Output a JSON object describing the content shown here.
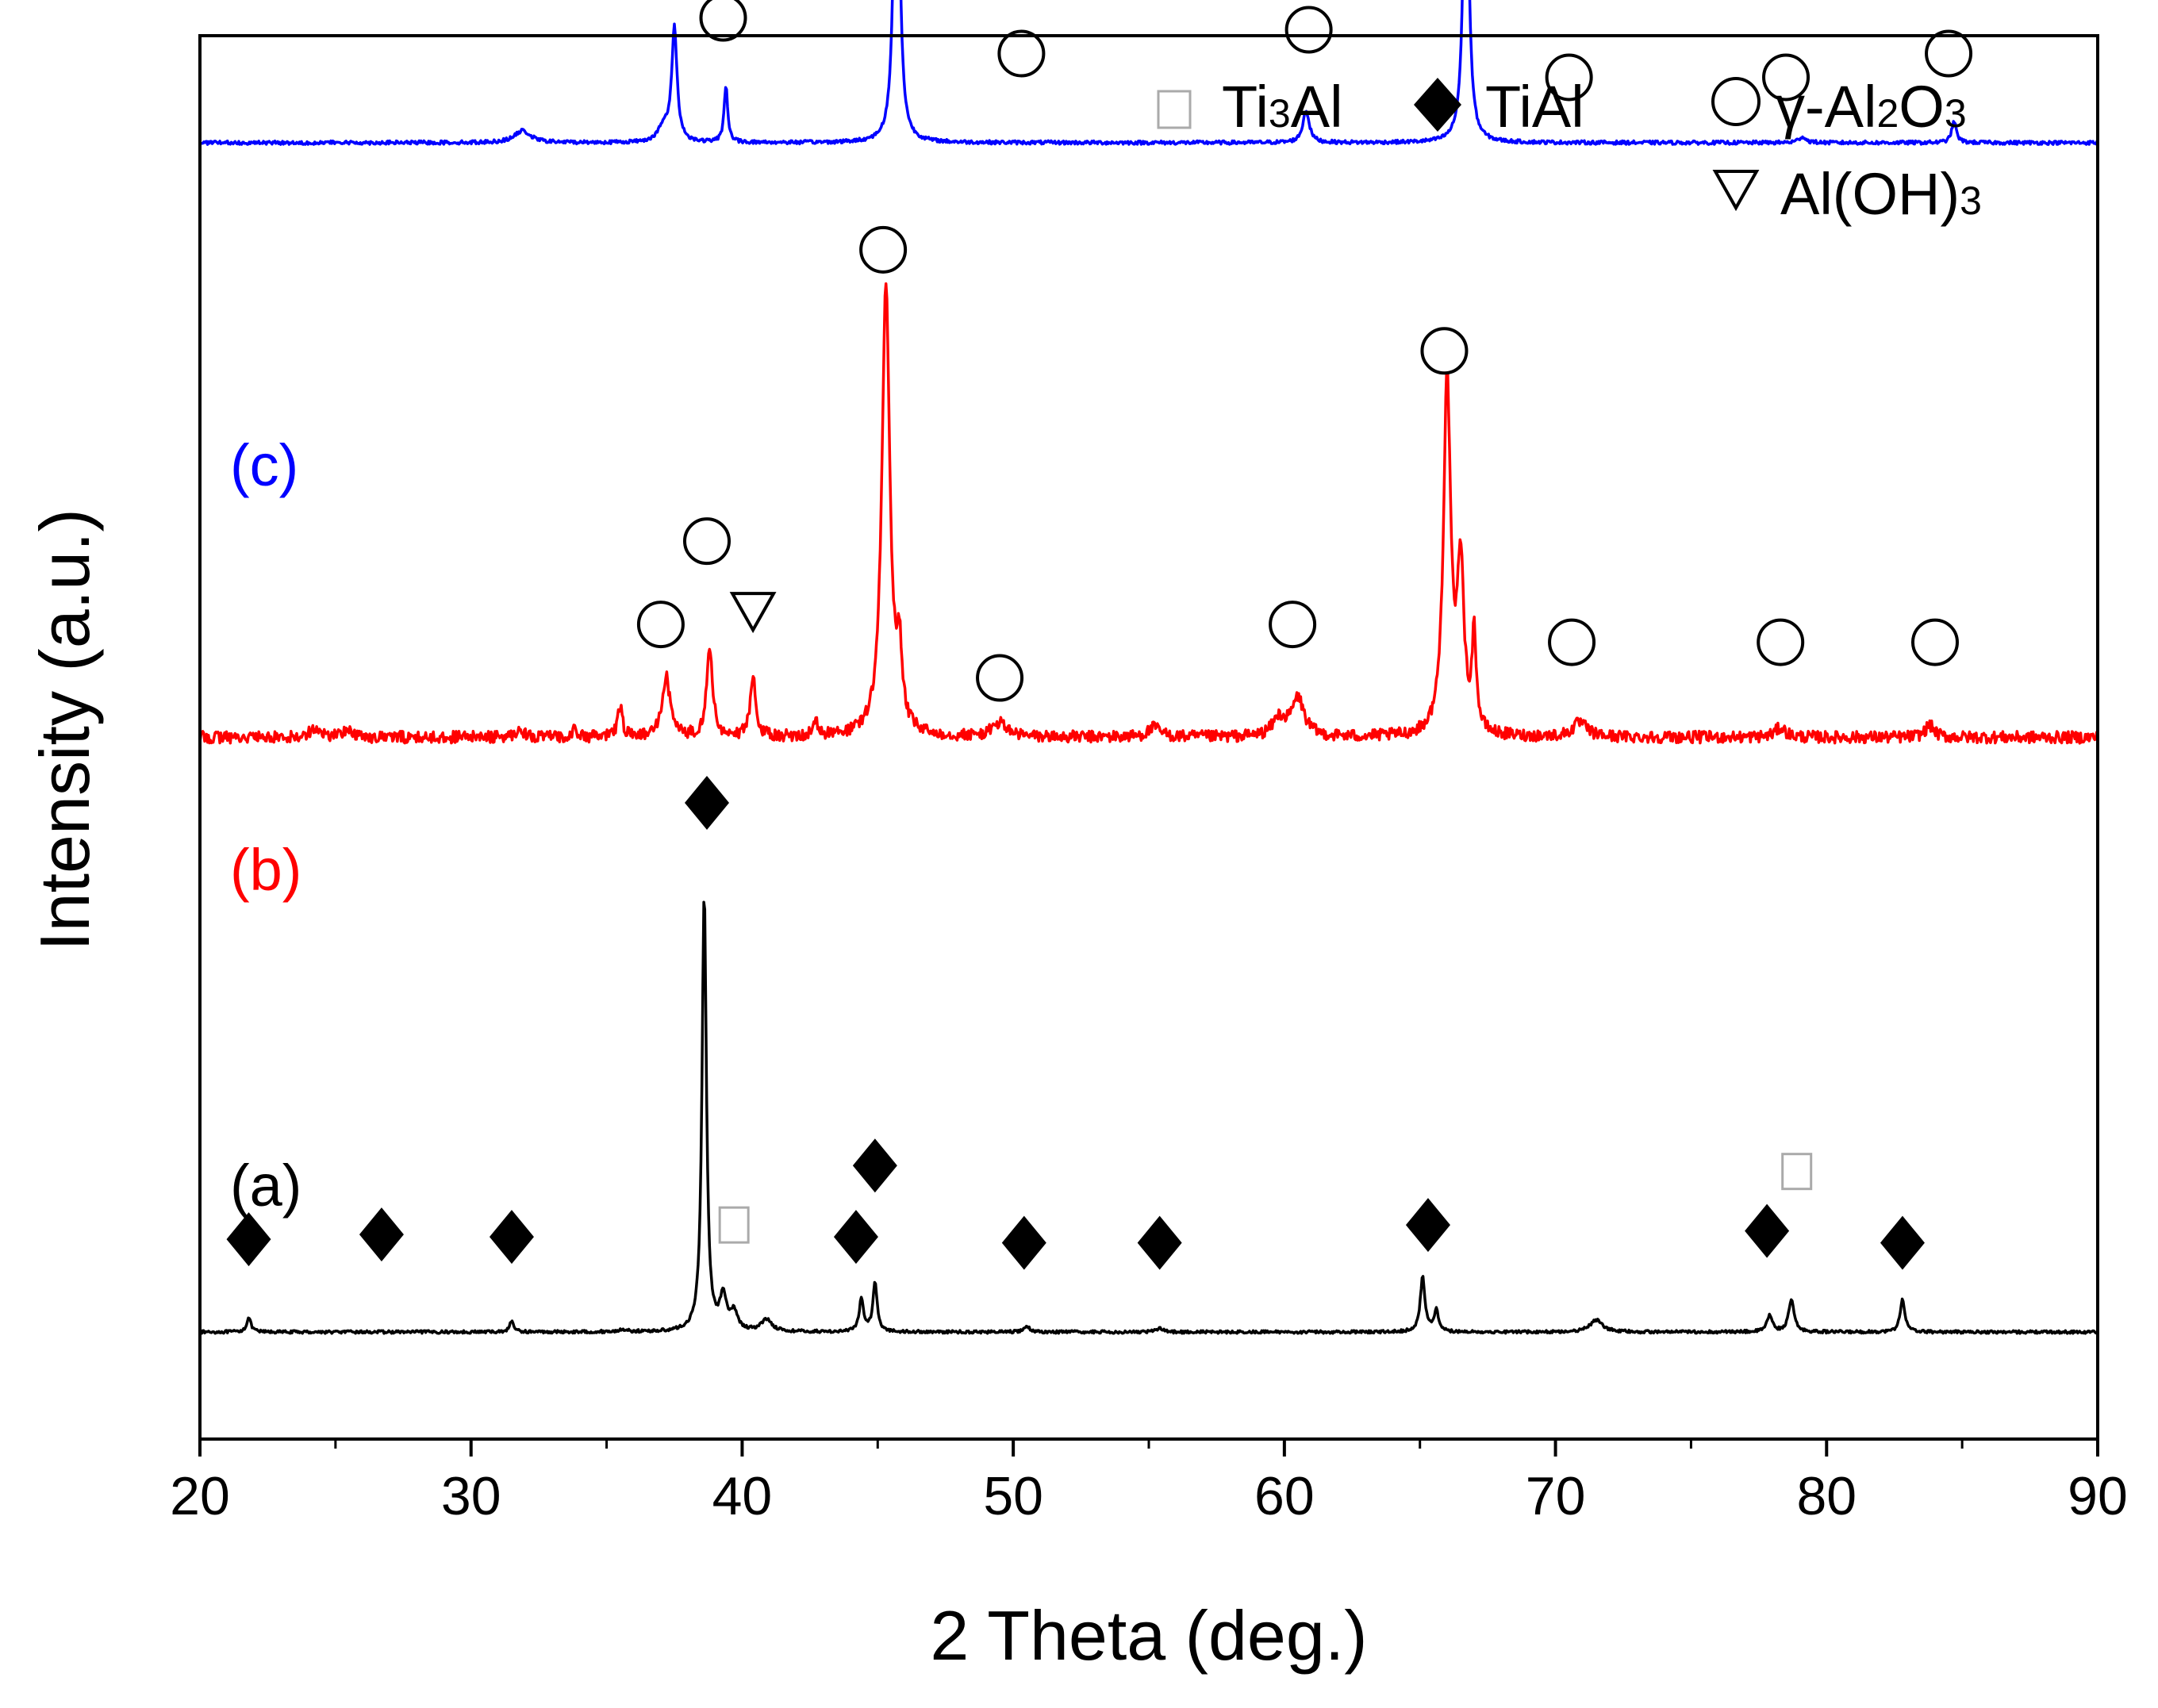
{
  "chart_data": {
    "type": "line",
    "title": "",
    "xlabel": "2 Theta (deg.)",
    "ylabel": "Intensity (a.u.)",
    "xlim": [
      20,
      90
    ],
    "ylim": [
      -0.9,
      10.9
    ],
    "grid": false,
    "x_ticks": [
      20,
      30,
      40,
      50,
      60,
      70,
      80,
      90
    ],
    "x_tick_labels": [
      "20",
      "30",
      "40",
      "50",
      "60",
      "70",
      "80",
      "90"
    ],
    "legend": {
      "placement": "top-right",
      "items": [
        {
          "marker": "square",
          "text": "Ti3Al",
          "color": "#9a9a9a"
        },
        {
          "marker": "diamond",
          "text": "TiAl",
          "color": "#000000"
        },
        {
          "marker": "circle",
          "text": "γ-Al2O3",
          "color": "#000000"
        },
        {
          "marker": "triangle-down",
          "text": "Al(OH)3",
          "color": "#000000"
        }
      ]
    },
    "series": [
      {
        "name": "(a)",
        "color": "#000000",
        "baseline": 0,
        "noise": 0.012,
        "peaks": [
          {
            "x": 21.8,
            "h": 0.12,
            "w": 0.12
          },
          {
            "x": 31.5,
            "h": 0.09,
            "w": 0.12
          },
          {
            "x": 35.6,
            "h": 0.02,
            "w": 0.2
          },
          {
            "x": 38.6,
            "h": 3.7,
            "w": 0.12
          },
          {
            "x": 39.3,
            "h": 0.28,
            "w": 0.18
          },
          {
            "x": 39.7,
            "h": 0.15,
            "w": 0.2
          },
          {
            "x": 40.9,
            "h": 0.1,
            "w": 0.3
          },
          {
            "x": 44.4,
            "h": 0.28,
            "w": 0.12
          },
          {
            "x": 44.9,
            "h": 0.42,
            "w": 0.12
          },
          {
            "x": 50.5,
            "h": 0.05,
            "w": 0.15
          },
          {
            "x": 55.4,
            "h": 0.04,
            "w": 0.15
          },
          {
            "x": 65.1,
            "h": 0.47,
            "w": 0.13
          },
          {
            "x": 65.6,
            "h": 0.18,
            "w": 0.12
          },
          {
            "x": 71.5,
            "h": 0.1,
            "w": 0.35
          },
          {
            "x": 77.9,
            "h": 0.14,
            "w": 0.15
          },
          {
            "x": 78.7,
            "h": 0.27,
            "w": 0.15
          },
          {
            "x": 82.8,
            "h": 0.28,
            "w": 0.13
          }
        ]
      },
      {
        "name": "(b)",
        "color": "#ff0000",
        "baseline": 5,
        "noise": 0.05,
        "peaks": [
          {
            "x": 24.2,
            "h": 0.07,
            "w": 0.3
          },
          {
            "x": 25.4,
            "h": 0.06,
            "w": 0.3
          },
          {
            "x": 31.8,
            "h": 0.08,
            "w": 0.2
          },
          {
            "x": 33.8,
            "h": 0.06,
            "w": 0.15
          },
          {
            "x": 35.5,
            "h": 0.26,
            "w": 0.13
          },
          {
            "x": 37.2,
            "h": 0.5,
            "w": 0.22
          },
          {
            "x": 38.8,
            "h": 0.72,
            "w": 0.17
          },
          {
            "x": 40.4,
            "h": 0.5,
            "w": 0.15
          },
          {
            "x": 42.7,
            "h": 0.12,
            "w": 0.15
          },
          {
            "x": 45.3,
            "h": 3.8,
            "w": 0.22
          },
          {
            "x": 45.8,
            "h": 0.6,
            "w": 0.15
          },
          {
            "x": 49.5,
            "h": 0.12,
            "w": 0.4
          },
          {
            "x": 55.2,
            "h": 0.08,
            "w": 0.35
          },
          {
            "x": 59.8,
            "h": 0.15,
            "w": 0.35
          },
          {
            "x": 60.5,
            "h": 0.32,
            "w": 0.35
          },
          {
            "x": 66.0,
            "h": 3.0,
            "w": 0.2
          },
          {
            "x": 66.5,
            "h": 1.4,
            "w": 0.18
          },
          {
            "x": 67.0,
            "h": 0.8,
            "w": 0.12
          },
          {
            "x": 70.9,
            "h": 0.12,
            "w": 0.4
          },
          {
            "x": 78.3,
            "h": 0.08,
            "w": 0.3
          },
          {
            "x": 83.8,
            "h": 0.1,
            "w": 0.25
          }
        ]
      },
      {
        "name": "(c)",
        "color": "#0000ff",
        "baseline": 10,
        "noise": 0.015,
        "peaks": [
          {
            "x": 31.9,
            "h": 0.1,
            "w": 0.45
          },
          {
            "x": 37.5,
            "h": 0.95,
            "w": 0.15
          },
          {
            "x": 37.1,
            "h": 0.12,
            "w": 0.3
          },
          {
            "x": 39.4,
            "h": 0.48,
            "w": 0.1
          },
          {
            "x": 45.7,
            "h": 3.7,
            "w": 0.14
          },
          {
            "x": 60.8,
            "h": 0.27,
            "w": 0.18
          },
          {
            "x": 66.7,
            "h": 2.85,
            "w": 0.15
          },
          {
            "x": 79.1,
            "h": 0.05,
            "w": 0.2
          },
          {
            "x": 84.7,
            "h": 0.18,
            "w": 0.13
          }
        ]
      }
    ],
    "annotations": [
      {
        "series": "(a)",
        "marker": "diamond",
        "x": 21.8,
        "y": 0.78
      },
      {
        "series": "(a)",
        "marker": "diamond",
        "x": 26.7,
        "y": 0.82
      },
      {
        "series": "(a)",
        "marker": "diamond",
        "x": 31.5,
        "y": 0.8
      },
      {
        "series": "(a)",
        "marker": "diamond",
        "x": 38.7,
        "y": 4.45
      },
      {
        "series": "(a)",
        "marker": "square",
        "x": 39.7,
        "y": 0.9
      },
      {
        "series": "(a)",
        "marker": "diamond",
        "x": 44.2,
        "y": 0.8
      },
      {
        "series": "(a)",
        "marker": "diamond",
        "x": 44.9,
        "y": 1.4
      },
      {
        "series": "(a)",
        "marker": "diamond",
        "x": 50.4,
        "y": 0.75
      },
      {
        "series": "(a)",
        "marker": "diamond",
        "x": 55.4,
        "y": 0.75
      },
      {
        "series": "(a)",
        "marker": "diamond",
        "x": 65.3,
        "y": 0.9
      },
      {
        "series": "(a)",
        "marker": "diamond",
        "x": 77.8,
        "y": 0.85
      },
      {
        "series": "(a)",
        "marker": "square",
        "x": 78.9,
        "y": 1.35
      },
      {
        "series": "(a)",
        "marker": "diamond",
        "x": 82.8,
        "y": 0.75
      },
      {
        "series": "(b)",
        "marker": "circle",
        "x": 37.0,
        "y": 5.95
      },
      {
        "series": "(b)",
        "marker": "circle",
        "x": 38.7,
        "y": 6.65
      },
      {
        "series": "(b)",
        "marker": "triangle-down",
        "x": 40.4,
        "y": 6.05
      },
      {
        "series": "(b)",
        "marker": "circle",
        "x": 45.2,
        "y": 9.1
      },
      {
        "series": "(b)",
        "marker": "circle",
        "x": 49.5,
        "y": 5.5
      },
      {
        "series": "(b)",
        "marker": "circle",
        "x": 60.3,
        "y": 5.95
      },
      {
        "series": "(b)",
        "marker": "circle",
        "x": 65.9,
        "y": 8.25
      },
      {
        "series": "(b)",
        "marker": "circle",
        "x": 70.6,
        "y": 5.8
      },
      {
        "series": "(b)",
        "marker": "circle",
        "x": 78.3,
        "y": 5.8
      },
      {
        "series": "(b)",
        "marker": "circle",
        "x": 84.0,
        "y": 5.8
      }
    ],
    "annotations_c": [
      {
        "series": "(c)",
        "marker": "circle",
        "x": 37.5,
        "y": 11.5
      },
      {
        "series": "(c)",
        "marker": "circle",
        "x": 39.3,
        "y": 11.05
      },
      {
        "series": "(c)",
        "marker": "circle",
        "x": 45.6,
        "y": 14.4
      },
      {
        "series": "(c)",
        "marker": "circle",
        "x": 50.3,
        "y": 10.75
      },
      {
        "series": "(c)",
        "marker": "circle",
        "x": 60.9,
        "y": 10.95
      },
      {
        "series": "(c)",
        "marker": "circle",
        "x": 66.6,
        "y": 13.55
      },
      {
        "series": "(c)",
        "marker": "circle",
        "x": 70.5,
        "y": 10.55
      },
      {
        "series": "(c)",
        "marker": "circle",
        "x": 78.5,
        "y": 10.55
      },
      {
        "series": "(c)",
        "marker": "circle",
        "x": 84.5,
        "y": 10.75
      }
    ]
  },
  "series_labels": {
    "a": "(a)",
    "b": "(b)",
    "c": "(c)"
  },
  "legend_labels": {
    "ti3al": {
      "base": "Ti",
      "sub": "3",
      "rest": "Al"
    },
    "tial": "TiAl",
    "al2o3": {
      "pre": "γ-Al",
      "sub1": "2",
      "mid": "O",
      "sub2": "3"
    },
    "aloh3": {
      "pre": "Al(OH)",
      "sub": "3"
    }
  }
}
